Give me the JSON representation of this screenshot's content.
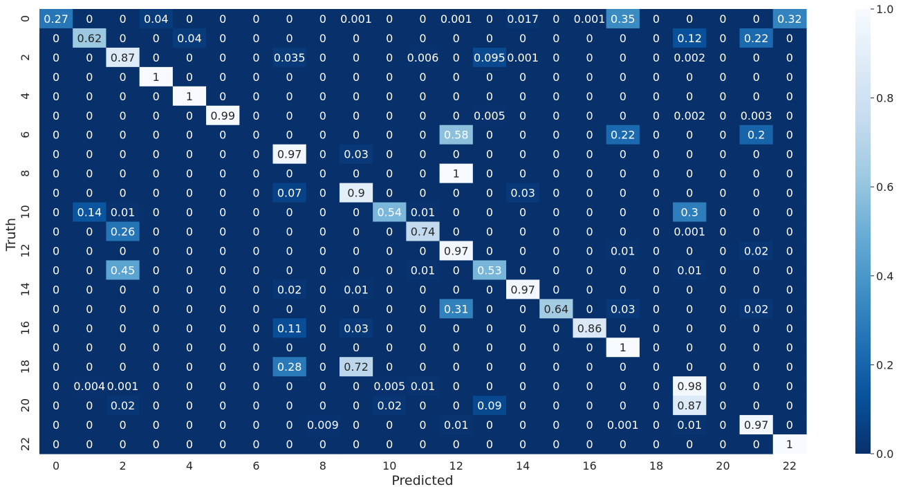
{
  "chart_data": {
    "type": "heatmap",
    "title": "",
    "xlabel": "Predicted",
    "ylabel": "Truth",
    "x_tick_labels": [
      "0",
      "2",
      "4",
      "6",
      "8",
      "10",
      "12",
      "14",
      "16",
      "18",
      "20",
      "22"
    ],
    "y_tick_labels": [
      "0",
      "2",
      "4",
      "6",
      "8",
      "10",
      "12",
      "14",
      "16",
      "18",
      "20",
      "22"
    ],
    "colorbar": {
      "ticks": [
        "0.0",
        "0.2",
        "0.4",
        "0.6",
        "0.8",
        "1.0"
      ],
      "min": 0,
      "max": 1,
      "colormap": "Blues_r"
    },
    "cell_labels": [
      [
        "0.27",
        "0",
        "0",
        "0.04",
        "0",
        "0",
        "0",
        "0",
        "0",
        "0.001",
        "0",
        "0",
        "0.001",
        "0",
        "0.017",
        "0",
        "0.001",
        "0.35",
        "0",
        "0",
        "0",
        "0",
        "0.32"
      ],
      [
        "0",
        "0.62",
        "0",
        "0",
        "0.04",
        "0",
        "0",
        "0",
        "0",
        "0",
        "0",
        "0",
        "0",
        "0",
        "0",
        "0",
        "0",
        "0",
        "0",
        "0.12",
        "0",
        "0.22",
        "0"
      ],
      [
        "0",
        "0",
        "0.87",
        "0",
        "0",
        "0",
        "0",
        "0.035",
        "0",
        "0",
        "0",
        "0.006",
        "0",
        "0.095",
        "0.001",
        "0",
        "0",
        "0",
        "0",
        "0.002",
        "0",
        "0",
        "0"
      ],
      [
        "0",
        "0",
        "0",
        "1",
        "0",
        "0",
        "0",
        "0",
        "0",
        "0",
        "0",
        "0",
        "0",
        "0",
        "0",
        "0",
        "0",
        "0",
        "0",
        "0",
        "0",
        "0",
        "0"
      ],
      [
        "0",
        "0",
        "0",
        "0",
        "1",
        "0",
        "0",
        "0",
        "0",
        "0",
        "0",
        "0",
        "0",
        "0",
        "0",
        "0",
        "0",
        "0",
        "0",
        "0",
        "0",
        "0",
        "0"
      ],
      [
        "0",
        "0",
        "0",
        "0",
        "0",
        "0.99",
        "0",
        "0",
        "0",
        "0",
        "0",
        "0",
        "0",
        "0.005",
        "0",
        "0",
        "0",
        "0",
        "0",
        "0.002",
        "0",
        "0.003",
        "0"
      ],
      [
        "0",
        "0",
        "0",
        "0",
        "0",
        "0",
        "0",
        "0",
        "0",
        "0",
        "0",
        "0",
        "0.58",
        "0",
        "0",
        "0",
        "0",
        "0.22",
        "0",
        "0",
        "0",
        "0.2",
        "0"
      ],
      [
        "0",
        "0",
        "0",
        "0",
        "0",
        "0",
        "0",
        "0.97",
        "0",
        "0.03",
        "0",
        "0",
        "0",
        "0",
        "0",
        "0",
        "0",
        "0",
        "0",
        "0",
        "0",
        "0",
        "0"
      ],
      [
        "0",
        "0",
        "0",
        "0",
        "0",
        "0",
        "0",
        "0",
        "0",
        "0",
        "0",
        "0",
        "1",
        "0",
        "0",
        "0",
        "0",
        "0",
        "0",
        "0",
        "0",
        "0",
        "0"
      ],
      [
        "0",
        "0",
        "0",
        "0",
        "0",
        "0",
        "0",
        "0.07",
        "0",
        "0.9",
        "0",
        "0",
        "0",
        "0",
        "0.03",
        "0",
        "0",
        "0",
        "0",
        "0",
        "0",
        "0",
        "0"
      ],
      [
        "0",
        "0.14",
        "0.01",
        "0",
        "0",
        "0",
        "0",
        "0",
        "0",
        "0",
        "0.54",
        "0.01",
        "0",
        "0",
        "0",
        "0",
        "0",
        "0",
        "0",
        "0.3",
        "0",
        "0",
        "0"
      ],
      [
        "0",
        "0",
        "0.26",
        "0",
        "0",
        "0",
        "0",
        "0",
        "0",
        "0",
        "0",
        "0.74",
        "0",
        "0",
        "0",
        "0",
        "0",
        "0",
        "0",
        "0.001",
        "0",
        "0",
        "0"
      ],
      [
        "0",
        "0",
        "0",
        "0",
        "0",
        "0",
        "0",
        "0",
        "0",
        "0",
        "0",
        "0",
        "0.97",
        "0",
        "0",
        "0",
        "0",
        "0.01",
        "0",
        "0",
        "0",
        "0.02",
        "0"
      ],
      [
        "0",
        "0",
        "0.45",
        "0",
        "0",
        "0",
        "0",
        "0",
        "0",
        "0",
        "0",
        "0.01",
        "0",
        "0.53",
        "0",
        "0",
        "0",
        "0",
        "0",
        "0.01",
        "0",
        "0",
        "0"
      ],
      [
        "0",
        "0",
        "0",
        "0",
        "0",
        "0",
        "0",
        "0.02",
        "0",
        "0.01",
        "0",
        "0",
        "0",
        "0",
        "0.97",
        "0",
        "0",
        "0",
        "0",
        "0",
        "0",
        "0",
        "0"
      ],
      [
        "0",
        "0",
        "0",
        "0",
        "0",
        "0",
        "0",
        "0",
        "0",
        "0",
        "0",
        "0",
        "0.31",
        "0",
        "0",
        "0.64",
        "0",
        "0.03",
        "0",
        "0",
        "0",
        "0.02",
        "0"
      ],
      [
        "0",
        "0",
        "0",
        "0",
        "0",
        "0",
        "0",
        "0.11",
        "0",
        "0.03",
        "0",
        "0",
        "0",
        "0",
        "0",
        "0",
        "0.86",
        "0",
        "0",
        "0",
        "0",
        "0",
        "0"
      ],
      [
        "0",
        "0",
        "0",
        "0",
        "0",
        "0",
        "0",
        "0",
        "0",
        "0",
        "0",
        "0",
        "0",
        "0",
        "0",
        "0",
        "0",
        "1",
        "0",
        "0",
        "0",
        "0",
        "0"
      ],
      [
        "0",
        "0",
        "0",
        "0",
        "0",
        "0",
        "0",
        "0.28",
        "0",
        "0.72",
        "0",
        "0",
        "0",
        "0",
        "0",
        "0",
        "0",
        "0",
        "0",
        "0",
        "0",
        "0",
        "0"
      ],
      [
        "0",
        "0.004",
        "0.001",
        "0",
        "0",
        "0",
        "0",
        "0",
        "0",
        "0",
        "0.005",
        "0.01",
        "0",
        "0",
        "0",
        "0",
        "0",
        "0",
        "0",
        "0.98",
        "0",
        "0",
        "0"
      ],
      [
        "0",
        "0",
        "0.02",
        "0",
        "0",
        "0",
        "0",
        "0",
        "0",
        "0",
        "0.02",
        "0",
        "0",
        "0.09",
        "0",
        "0",
        "0",
        "0",
        "0",
        "0.87",
        "0",
        "0",
        "0"
      ],
      [
        "0",
        "0",
        "0",
        "0",
        "0",
        "0",
        "0",
        "0",
        "0.009",
        "0",
        "0",
        "0",
        "0.01",
        "0",
        "0",
        "0",
        "0",
        "0.001",
        "0",
        "0.01",
        "0",
        "0.97",
        "0"
      ],
      [
        "0",
        "0",
        "0",
        "0",
        "0",
        "0",
        "0",
        "0",
        "0",
        "0",
        "0",
        "0",
        "0",
        "0",
        "0",
        "0",
        "0",
        "0",
        "0",
        "0",
        "0",
        "0",
        "1"
      ]
    ]
  }
}
